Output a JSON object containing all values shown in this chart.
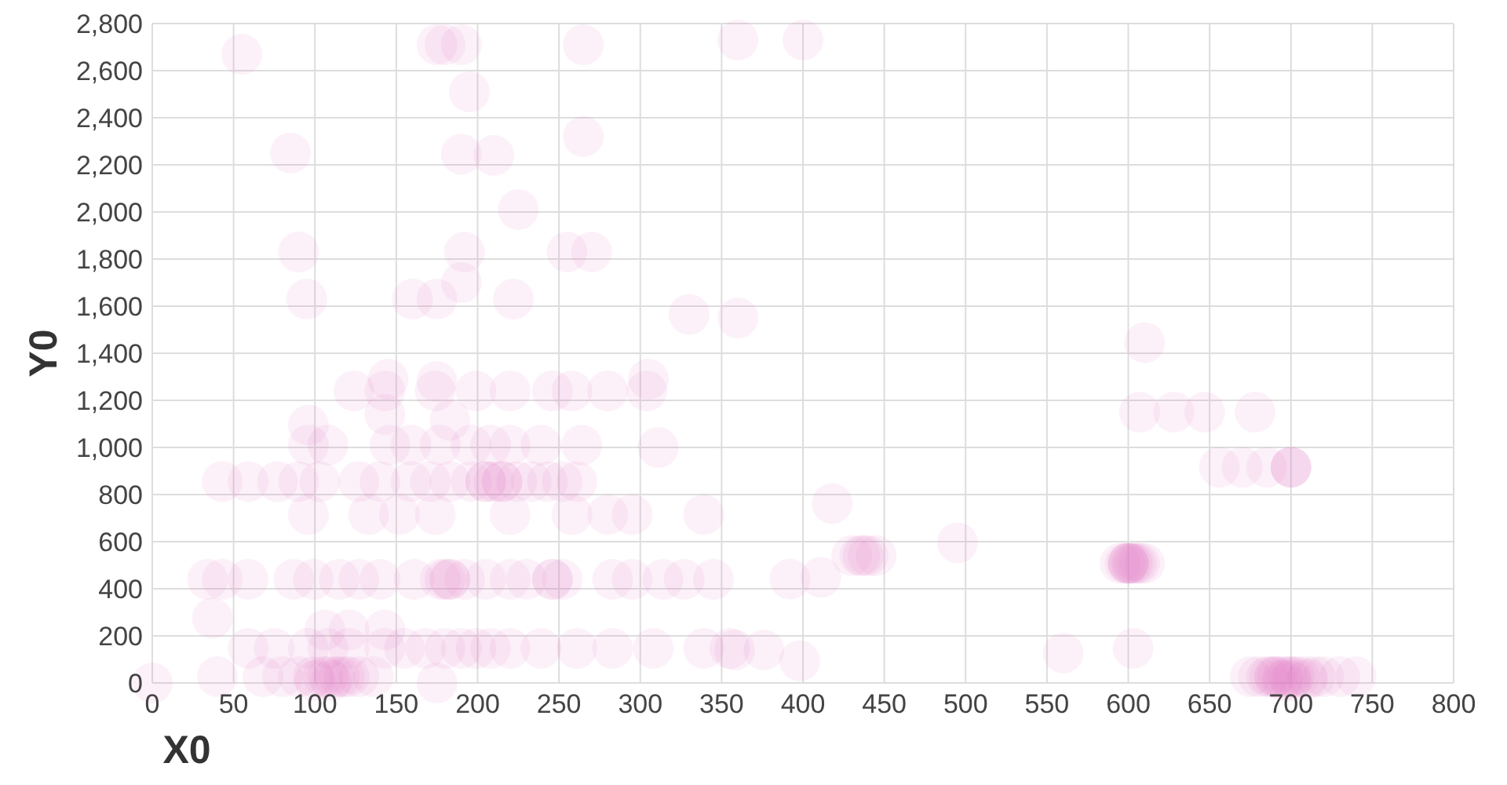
{
  "chart_data": {
    "type": "scatter",
    "xlabel": "X0",
    "ylabel": "Y0",
    "grid": true,
    "marker": "circle",
    "xlim": [
      0,
      800
    ],
    "xticks": [
      0,
      50,
      100,
      150,
      200,
      250,
      300,
      350,
      400,
      450,
      500,
      550,
      600,
      650,
      700,
      750,
      800
    ],
    "ylim": [
      0,
      2800
    ],
    "yticks": [
      0,
      200,
      400,
      600,
      800,
      {
        "value": 1000,
        "label": "1,000"
      },
      {
        "value": 1200,
        "label": "1,200"
      },
      {
        "value": 1400,
        "label": "1,400"
      },
      {
        "value": 1600,
        "label": "1,600"
      },
      {
        "value": 1800,
        "label": "1,800"
      },
      {
        "value": 2000,
        "label": "2,000"
      },
      {
        "value": 2200,
        "label": "2,200"
      },
      {
        "value": 2400,
        "label": "2,400"
      },
      {
        "value": 2600,
        "label": "2,600"
      },
      {
        "value": 2800,
        "label": "2,800"
      }
    ],
    "series": [
      {
        "color": "#e377c2",
        "x": [
          55,
          85,
          90,
          95,
          175,
          180,
          190,
          195,
          190,
          210,
          225,
          192,
          190,
          160,
          175,
          222,
          265,
          265,
          255,
          270,
          330,
          360,
          400,
          360,
          610,
          145,
          175,
          305,
          124,
          143,
          174,
          199,
          220,
          246,
          258,
          280,
          304,
          96,
          143,
          183,
          96,
          108,
          146,
          159,
          177,
          196,
          208,
          220,
          239,
          264,
          311,
          43,
          59,
          77,
          90,
          103,
          127,
          140,
          159,
          171,
          183,
          196,
          205,
          205,
          210,
          215,
          215,
          224,
          233,
          243,
          252,
          261,
          96,
          133,
          152,
          174,
          220,
          258,
          280,
          295,
          339,
          34,
          43,
          59,
          87,
          99,
          115,
          127,
          140,
          161,
          177,
          180,
          183,
          183,
          192,
          205,
          220,
          230,
          246,
          246,
          252,
          283,
          295,
          314,
          327,
          345,
          37,
          106,
          121,
          143,
          59,
          75,
          96,
          108,
          121,
          143,
          155,
          168,
          180,
          190,
          199,
          208,
          220,
          239,
          261,
          283,
          308,
          339,
          355,
          358,
          376,
          398,
          40,
          68,
          80,
          90,
          99,
          105,
          108,
          112,
          115,
          118,
          121,
          127,
          136,
          100,
          110,
          175,
          0,
          607,
          628,
          647,
          678,
          656,
          670,
          685,
          700,
          700,
          700,
          418,
          430,
          435,
          437,
          440,
          445,
          392,
          411,
          495,
          595,
          598,
          600,
          600,
          602,
          603,
          605,
          607,
          610,
          600,
          560,
          603,
          675,
          680,
          685,
          687,
          690,
          690,
          692,
          695,
          698,
          700,
          702,
          705,
          710,
          715,
          720,
          730,
          740,
          695,
          700,
          710
        ],
        "values": [
          2670,
          2250,
          1830,
          1630,
          2710,
          2710,
          2710,
          2510,
          2245,
          2240,
          2010,
          1830,
          1700,
          1630,
          1630,
          1630,
          2710,
          2320,
          1830,
          1830,
          1565,
          2730,
          2730,
          1550,
          1445,
          1290,
          1280,
          1290,
          1240,
          1240,
          1240,
          1240,
          1240,
          1240,
          1240,
          1240,
          1240,
          1095,
          1140,
          1115,
          1010,
          1010,
          1010,
          1010,
          1010,
          1010,
          1010,
          1010,
          1010,
          1010,
          1000,
          855,
          855,
          855,
          855,
          855,
          855,
          855,
          855,
          855,
          855,
          855,
          855,
          855,
          855,
          855,
          855,
          855,
          855,
          855,
          855,
          855,
          715,
          715,
          715,
          715,
          715,
          715,
          715,
          715,
          715,
          440,
          440,
          440,
          440,
          440,
          440,
          440,
          440,
          440,
          440,
          440,
          440,
          440,
          440,
          440,
          440,
          440,
          440,
          440,
          440,
          440,
          440,
          440,
          440,
          440,
          275,
          225,
          225,
          225,
          147,
          147,
          147,
          147,
          147,
          147,
          147,
          147,
          147,
          147,
          147,
          147,
          147,
          147,
          147,
          147,
          147,
          147,
          147,
          140,
          140,
          94,
          27,
          27,
          27,
          27,
          27,
          27,
          27,
          27,
          27,
          27,
          27,
          27,
          27,
          10,
          10,
          0,
          0,
          1150,
          1150,
          1150,
          1150,
          916,
          916,
          916,
          916,
          916,
          916,
          762,
          541,
          541,
          541,
          541,
          541,
          441,
          448,
          595,
          508,
          508,
          508,
          508,
          508,
          508,
          508,
          508,
          508,
          508,
          127,
          147,
          27,
          27,
          27,
          27,
          27,
          27,
          27,
          27,
          27,
          27,
          27,
          27,
          27,
          27,
          27,
          27,
          27,
          10,
          10,
          15
        ]
      }
    ]
  }
}
